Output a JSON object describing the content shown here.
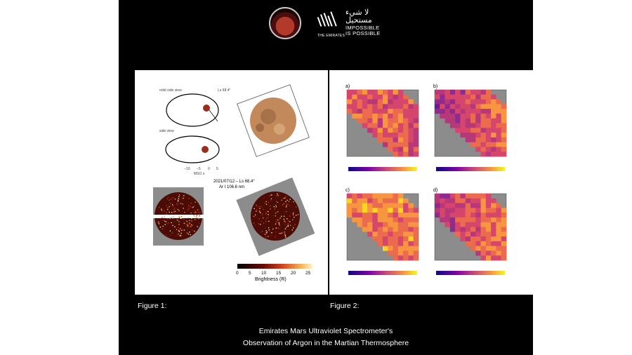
{
  "branding": {
    "emirates_arabic": "لا شيء مستحيل",
    "emirates_line1": "IMPOSSIBLE",
    "emirates_line2": "IS POSSIBLE",
    "emirates_sub": "THE EMIRATES"
  },
  "figure1": {
    "caption": "Figure 1:",
    "orbit_top_label": "orbit side view",
    "orbit_bottom_label": "side view",
    "ls_label": "Ls 68.4°",
    "date_label": "2021/07/12 – Ls 68.4°",
    "wavelength_label": "Ar I 106.6 nm",
    "colorbar_ticks": [
      "0",
      "5",
      "10",
      "15",
      "20",
      "25"
    ],
    "colorbar_label": "Brightness (R)"
  },
  "figure2": {
    "caption": "Figure 2:",
    "panels": [
      {
        "letter": "a)"
      },
      {
        "letter": "b)"
      },
      {
        "letter": "c)"
      },
      {
        "letter": "d)"
      }
    ]
  },
  "title": {
    "line1": "Emirates Mars Ultraviolet Spectrometer's",
    "line2": "Observation of Argon in the Martian Thermosphere"
  },
  "colors": {
    "background": "#000000",
    "panel": "#ffffff",
    "plasma_low": "#3b0f70",
    "plasma_high": "#fbd524"
  }
}
